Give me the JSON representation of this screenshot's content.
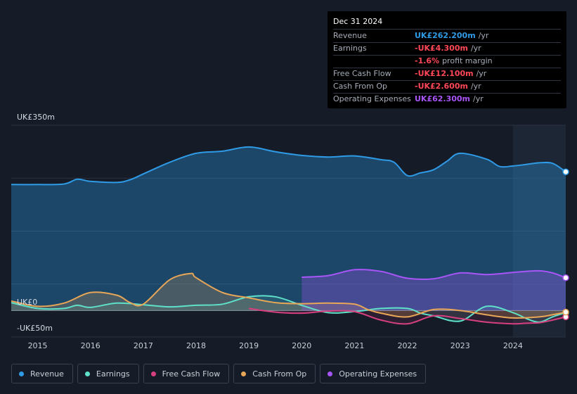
{
  "tooltip": {
    "date": "Dec 31 2024",
    "rows": [
      {
        "label": "Revenue",
        "value": "UK£262.200m",
        "unit": "/yr",
        "color": "#2f9be6"
      },
      {
        "label": "Earnings",
        "value": "-UK£4.300m",
        "unit": "/yr",
        "color": "#ff4757"
      },
      {
        "label": "",
        "value": "-1.6%",
        "unit": "profit margin",
        "color": "#ff4757"
      },
      {
        "label": "Free Cash Flow",
        "value": "-UK£12.100m",
        "unit": "/yr",
        "color": "#ff4757"
      },
      {
        "label": "Cash From Op",
        "value": "-UK£2.600m",
        "unit": "/yr",
        "color": "#ff4757"
      },
      {
        "label": "Operating Expenses",
        "value": "UK£62.300m",
        "unit": "/yr",
        "color": "#a855f7"
      }
    ]
  },
  "legend": [
    {
      "label": "Revenue",
      "color": "#2f9be6"
    },
    {
      "label": "Earnings",
      "color": "#5fe0c8"
    },
    {
      "label": "Free Cash Flow",
      "color": "#d6407f"
    },
    {
      "label": "Cash From Op",
      "color": "#e8a657"
    },
    {
      "label": "Operating Expenses",
      "color": "#a855f7"
    }
  ],
  "chart_data": {
    "type": "area",
    "title": "",
    "xlabel": "",
    "ylabel": "",
    "y_top_label": "UK£350m",
    "y_zero_label": "UK£0",
    "y_bottom_label": "-UK£50m",
    "ylim": [
      -50,
      350
    ],
    "xlim": [
      2014.5,
      2025.0
    ],
    "x_ticks": [
      2015,
      2016,
      2017,
      2018,
      2019,
      2020,
      2021,
      2022,
      2023,
      2024
    ],
    "x_tick_labels": [
      "2015",
      "2016",
      "2017",
      "2018",
      "2019",
      "2020",
      "2021",
      "2022",
      "2023",
      "2024"
    ],
    "highlight_start": 2024.0,
    "series": [
      {
        "name": "Revenue",
        "color": "#2f9be6",
        "x": [
          2014.5,
          2015.0,
          2015.5,
          2015.75,
          2016.0,
          2016.5,
          2016.75,
          2017.0,
          2017.5,
          2018.0,
          2018.5,
          2019.0,
          2019.5,
          2020.0,
          2020.5,
          2021.0,
          2021.5,
          2021.75,
          2022.0,
          2022.25,
          2022.5,
          2022.75,
          2023.0,
          2023.5,
          2023.75,
          2024.0,
          2024.25,
          2024.5,
          2024.75,
          2025.0
        ],
        "values": [
          238,
          238,
          239,
          248,
          244,
          242,
          247,
          258,
          280,
          297,
          301,
          309,
          300,
          293,
          290,
          292,
          285,
          280,
          255,
          260,
          266,
          282,
          297,
          286,
          272,
          273,
          276,
          279,
          278,
          262
        ]
      },
      {
        "name": "Earnings",
        "color": "#5fe0c8",
        "x": [
          2014.5,
          2015.0,
          2015.5,
          2015.75,
          2016.0,
          2016.5,
          2017.0,
          2017.5,
          2018.0,
          2018.5,
          2019.0,
          2019.5,
          2020.0,
          2020.5,
          2021.0,
          2021.5,
          2022.0,
          2022.25,
          2022.5,
          2023.0,
          2023.5,
          2024.0,
          2024.25,
          2024.5,
          2024.75,
          2025.0
        ],
        "values": [
          15,
          4,
          4,
          10,
          6,
          14,
          11,
          7,
          10,
          12,
          26,
          26,
          10,
          -4,
          -2,
          4,
          4,
          -5,
          -10,
          -20,
          8,
          -4,
          -15,
          -22,
          -12,
          -4
        ]
      },
      {
        "name": "Free Cash Flow",
        "color": "#d6407f",
        "x": [
          2019.0,
          2019.5,
          2020.0,
          2020.5,
          2021.0,
          2021.5,
          2022.0,
          2022.5,
          2023.0,
          2023.5,
          2024.0,
          2024.25,
          2024.5,
          2024.75,
          2025.0
        ],
        "values": [
          4,
          -3,
          -5,
          -1,
          -2,
          -18,
          -25,
          -10,
          -15,
          -22,
          -25,
          -24,
          -23,
          -18,
          -12
        ]
      },
      {
        "name": "Cash From Op",
        "color": "#e8a657",
        "x": [
          2014.5,
          2015.0,
          2015.5,
          2016.0,
          2016.5,
          2016.75,
          2017.0,
          2017.5,
          2017.9,
          2018.0,
          2018.5,
          2019.0,
          2019.5,
          2020.0,
          2020.5,
          2021.0,
          2021.25,
          2021.5,
          2022.0,
          2022.5,
          2023.0,
          2023.5,
          2024.0,
          2024.5,
          2024.75,
          2025.0
        ],
        "values": [
          18,
          8,
          14,
          34,
          29,
          15,
          12,
          58,
          70,
          62,
          34,
          24,
          15,
          13,
          14,
          12,
          2,
          -5,
          -12,
          2,
          0,
          -8,
          -14,
          -12,
          -8,
          -3
        ]
      },
      {
        "name": "Operating Expenses",
        "color": "#a855f7",
        "x": [
          2020.0,
          2020.5,
          2021.0,
          2021.5,
          2022.0,
          2022.5,
          2023.0,
          2023.5,
          2024.0,
          2024.25,
          2024.5,
          2024.75,
          2025.0
        ],
        "values": [
          63,
          66,
          77,
          74,
          61,
          60,
          71,
          68,
          72,
          74,
          75,
          71,
          62
        ]
      }
    ]
  }
}
